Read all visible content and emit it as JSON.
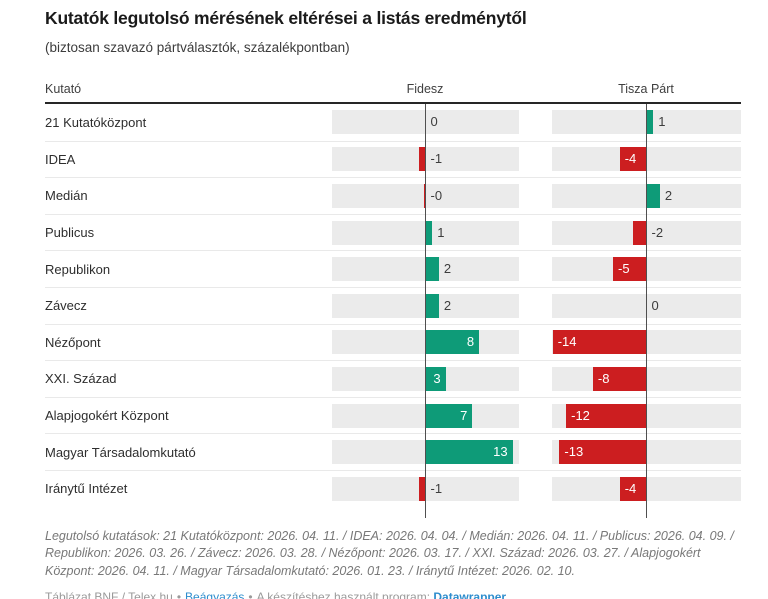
{
  "title": "Kutatók legutolsó mérésének eltérései a listás eredménytől",
  "subtitle": "(biztosan szavazó pártválasztók, százalékpontban)",
  "table_header": {
    "kutato": "Kutató",
    "fidesz": "Fidesz",
    "tisza": "Tisza Párt"
  },
  "chart_data": {
    "type": "bar",
    "orientation": "horizontal-diverging",
    "title": "Kutatók legutolsó mérésének eltérései a listás eredménytől",
    "subtitle": "(biztosan szavazó pártválasztók, százalékpontban)",
    "categories": [
      "21 Kutatóközpont",
      "IDEA",
      "Medián",
      "Publicus",
      "Republikon",
      "Závecz",
      "Nézőpont",
      "XXI. Század",
      "Alapjogokért Központ",
      "Magyar Társadalomkutató",
      "Iránytű Intézet"
    ],
    "series": [
      {
        "name": "Fidesz",
        "values": [
          0,
          -1,
          0,
          1,
          2,
          2,
          8,
          3,
          7,
          13,
          -1
        ],
        "labels": [
          "0",
          "-1",
          "-0",
          "1",
          "2",
          "2",
          "8",
          "3",
          "7",
          "13",
          "-1"
        ]
      },
      {
        "name": "Tisza Párt",
        "values": [
          1,
          -4,
          2,
          -2,
          -5,
          0,
          -14,
          -8,
          -12,
          -13,
          -4
        ],
        "labels": [
          "1",
          "-4",
          "2",
          "-2",
          "-5",
          "0",
          "-14",
          "-8",
          "-12",
          "-13",
          "-4"
        ]
      }
    ],
    "xlim": [
      -14,
      14
    ],
    "unit": "százalékpont",
    "legend_position": "none",
    "grid": "zero-axis-only",
    "colors": {
      "positive": "#0e9b78",
      "negative": "#cc1e20",
      "track": "#ebebeb"
    }
  },
  "footer": {
    "notes": "Legutolsó kutatások: 21 Kutatóközpont: 2026. 04. 11. / IDEA: 2026. 04. 04. / Medián: 2026. 04. 11. / Publicus: 2026. 04. 09. / Republikon: 2026. 03. 26. / Závecz: 2026. 03. 28. / Nézőpont: 2026. 03. 17. / XXI. Század: 2026. 03. 27. / Alapjogokért Központ: 2026. 04. 11. / Magyar Társadalomkutató: 2026. 01. 23. / Iránytű Intézet: 2026. 02. 10.",
    "source": "Táblázat BNF / Telex.hu",
    "separator": "•",
    "embed_link": "Beágyazás",
    "program_prefix": "A készítéshez használt program:",
    "program_link": "Datawrapper"
  }
}
